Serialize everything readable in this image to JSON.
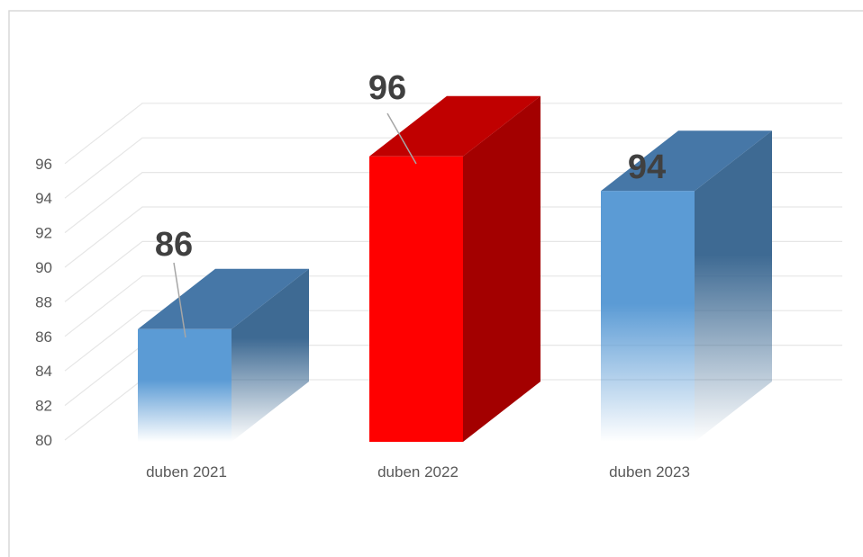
{
  "chart_data": {
    "type": "bar",
    "categories": [
      "duben 2021",
      "duben 2022",
      "duben 2023"
    ],
    "values": [
      86,
      96,
      94
    ],
    "data_labels": [
      "86",
      "96",
      "94"
    ],
    "y_ticks": [
      "80",
      "82",
      "84",
      "86",
      "88",
      "90",
      "92",
      "94",
      "96"
    ],
    "ylim": [
      80,
      96
    ],
    "grid": true,
    "legend": "none",
    "three_d": true,
    "colors": {
      "default_front": "#5b9bd5",
      "default_side": "#3e6a93",
      "default_top": "#4677a7",
      "highlight_front": "#ff0000",
      "highlight_side": "#a30000",
      "highlight_top": "#c00000",
      "grid": "#e6e6e6",
      "frame": "#d9d9d9"
    },
    "highlight_index": 1
  }
}
